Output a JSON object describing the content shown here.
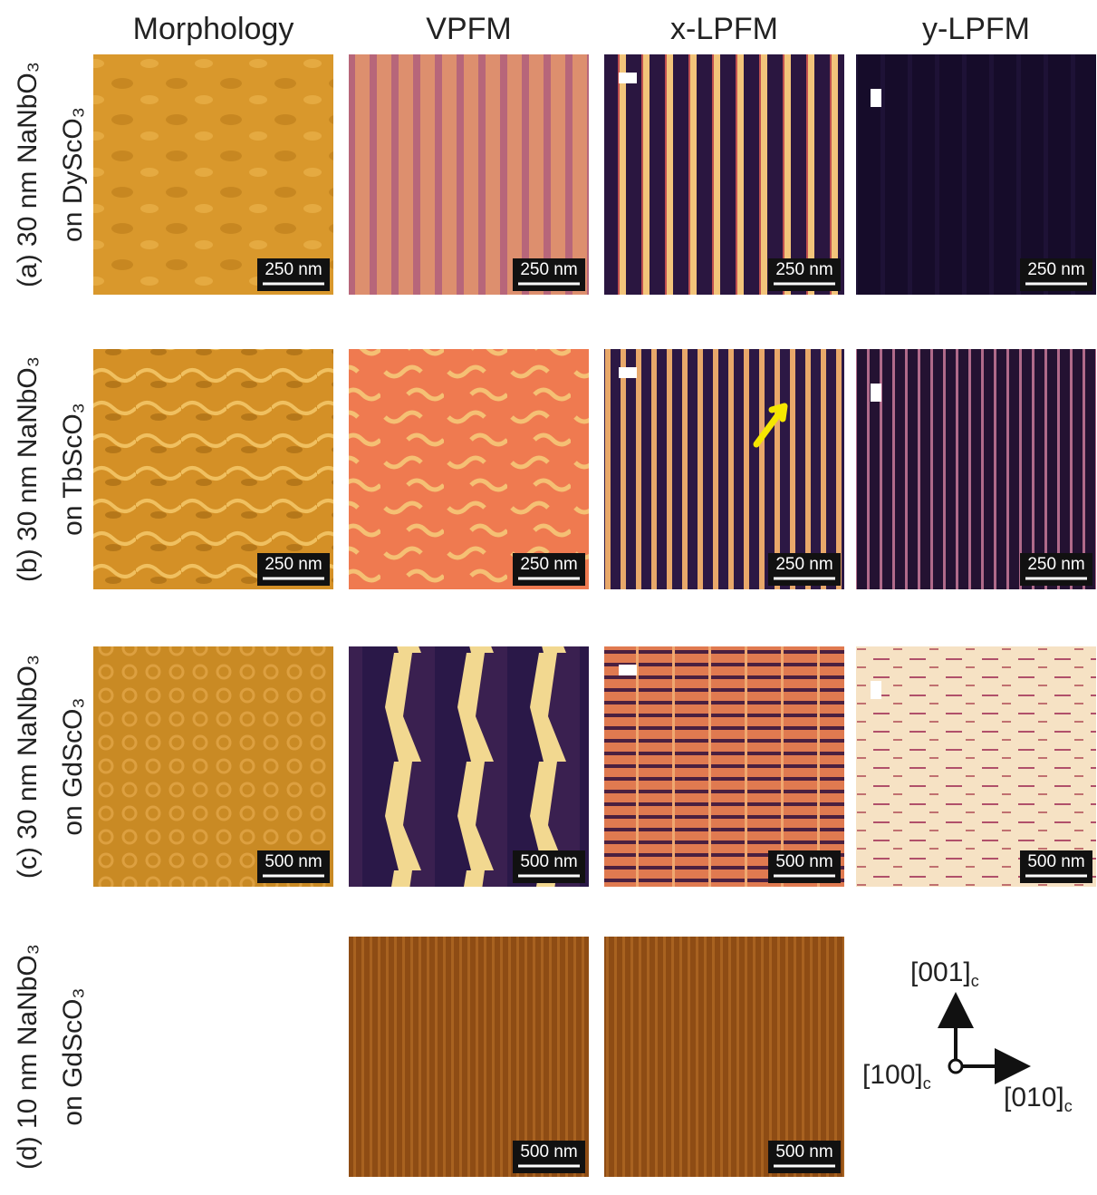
{
  "columns": [
    "Morphology",
    "VPFM",
    "x-LPFM",
    "y-LPFM"
  ],
  "rows": [
    {
      "label_line1": "(a) 30 nm NaNbO₃",
      "label_line2": "on DyScO₃",
      "scale_bars": [
        "250 nm",
        "250 nm",
        "250 nm",
        "250 nm"
      ]
    },
    {
      "label_line1": "(b) 30 nm NaNbO₃",
      "label_line2": "on TbScO₃",
      "scale_bars": [
        "250 nm",
        "250 nm",
        "250 nm",
        "250 nm"
      ]
    },
    {
      "label_line1": "(c) 30 nm NaNbO₃",
      "label_line2": "on GdScO₃",
      "scale_bars": [
        "500 nm",
        "500 nm",
        "500 nm",
        "500 nm"
      ]
    },
    {
      "label_line1": "(d) 10 nm NaNbO₃",
      "label_line2": "on GdScO₃",
      "scale_bars": [
        "500 nm",
        "500 nm"
      ]
    }
  ],
  "axes": {
    "up": {
      "main": "[001]",
      "sub": "c"
    },
    "out": {
      "main": "[100]",
      "sub": "c"
    },
    "right": {
      "main": "[010]",
      "sub": "c"
    }
  }
}
